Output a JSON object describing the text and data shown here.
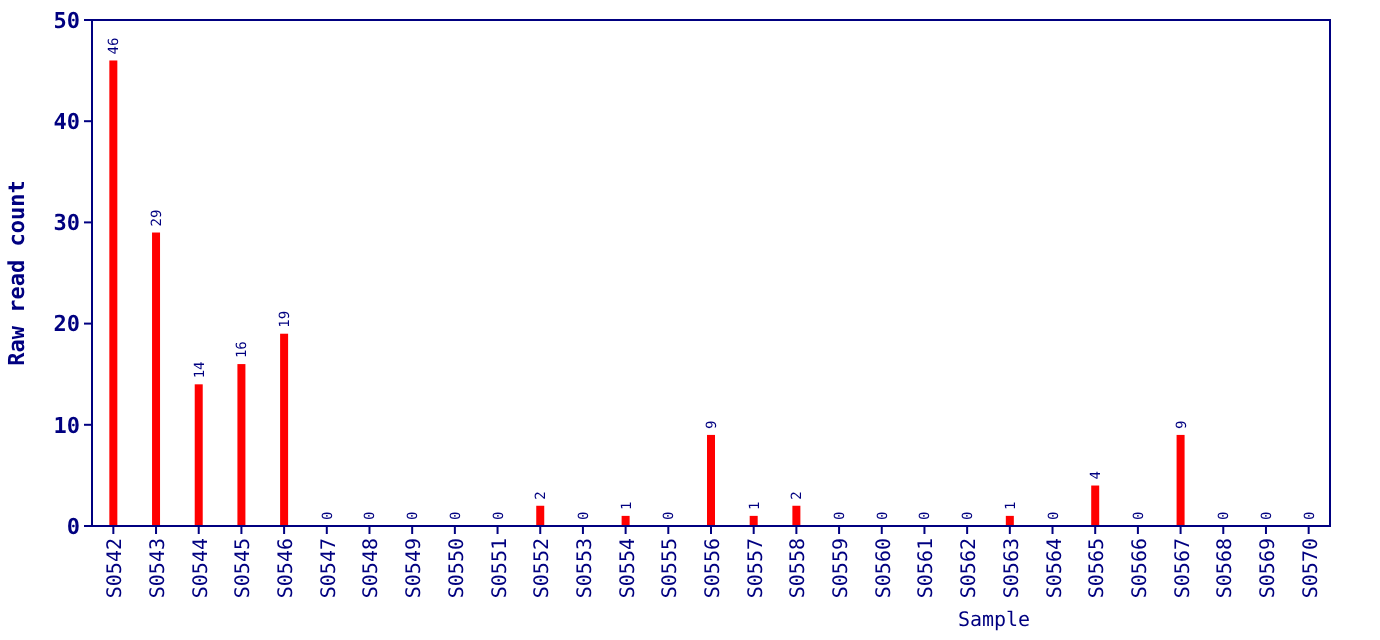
{
  "chart_data": {
    "type": "bar",
    "xlabel": "Sample",
    "ylabel": "Raw read count",
    "categories": [
      "S0542",
      "S0543",
      "S0544",
      "S0545",
      "S0546",
      "S0547",
      "S0548",
      "S0549",
      "S0550",
      "S0551",
      "S0552",
      "S0553",
      "S0554",
      "S0555",
      "S0556",
      "S0557",
      "S0558",
      "S0559",
      "S0560",
      "S0561",
      "S0562",
      "S0563",
      "S0564",
      "S0565",
      "S0566",
      "S0567",
      "S0568",
      "S0569",
      "S0570"
    ],
    "values": [
      46,
      29,
      14,
      16,
      19,
      0,
      0,
      0,
      0,
      0,
      2,
      0,
      1,
      0,
      9,
      1,
      2,
      0,
      0,
      0,
      0,
      1,
      0,
      4,
      0,
      9,
      0,
      0,
      0
    ],
    "color": "#ff0000",
    "ylim": [
      0,
      50
    ],
    "yticks": [
      0,
      10,
      20,
      30,
      40,
      50
    ],
    "grid": false,
    "data_labels": true
  }
}
